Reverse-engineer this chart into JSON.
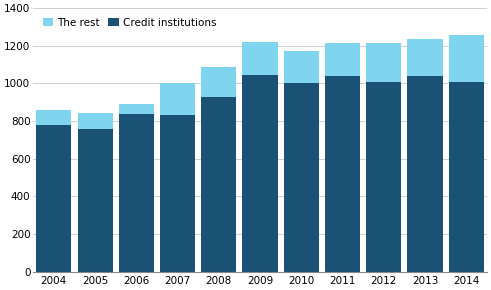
{
  "years": [
    "2004",
    "2005",
    "2006",
    "2007",
    "2008",
    "2009",
    "2010",
    "2011",
    "2012",
    "2013",
    "2014"
  ],
  "credit_institutions": [
    780,
    760,
    840,
    830,
    930,
    1045,
    1005,
    1040,
    1010,
    1040,
    1010
  ],
  "the_rest": [
    80,
    85,
    50,
    175,
    155,
    175,
    165,
    175,
    205,
    195,
    245
  ],
  "color_credit": "#1a5276",
  "color_rest": "#7fd4f0",
  "ylim": [
    0,
    1400
  ],
  "yticks": [
    0,
    200,
    400,
    600,
    800,
    1000,
    1200,
    1400
  ],
  "legend_labels": [
    "The rest",
    "Credit institutions"
  ],
  "background_color": "#ffffff",
  "grid_color": "#c8c8c8"
}
